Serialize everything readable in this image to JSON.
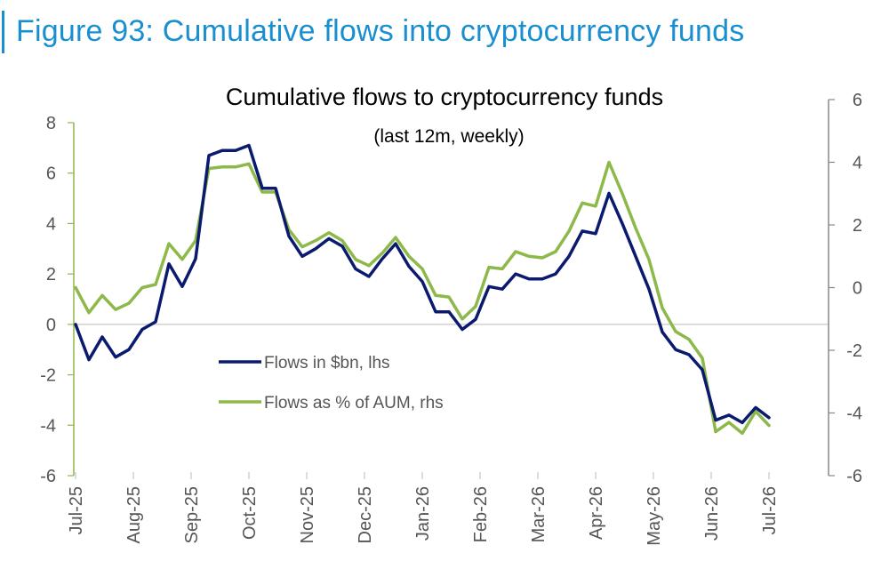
{
  "figure": {
    "heading": "Figure 93: Cumulative flows into cryptocurrency funds",
    "accent_color": "#1a8fd0"
  },
  "chart_data": {
    "type": "line",
    "title": "Cumulative flows to cryptocurrency funds",
    "subtitle": "(last 12m, weekly)",
    "x_tick_labels": [
      "Jul-25",
      "Aug-25",
      "Sep-25",
      "Oct-25",
      "Nov-25",
      "Dec-25",
      "Jan-26",
      "Feb-26",
      "Mar-26",
      "Apr-26",
      "May-26",
      "Jun-26",
      "Jul-26"
    ],
    "y_left": {
      "lim": [
        -6,
        8
      ],
      "ticks": [
        -6,
        -4,
        -2,
        0,
        2,
        4,
        6,
        8
      ]
    },
    "y_right": {
      "lim": [
        -6,
        6
      ],
      "ticks": [
        -6,
        -4,
        -2,
        0,
        2,
        4,
        6
      ]
    },
    "grid": "horizontal-at-zero",
    "legend_position": "center-left",
    "series": [
      {
        "name": "Flows in $bn, lhs",
        "axis": "left",
        "color": "#0a1a6e",
        "values": [
          0.0,
          -1.4,
          -0.5,
          -1.3,
          -1.0,
          -0.2,
          0.1,
          2.4,
          1.5,
          2.6,
          6.7,
          6.9,
          6.9,
          7.1,
          5.4,
          5.4,
          3.5,
          2.7,
          3.0,
          3.4,
          3.1,
          2.2,
          1.9,
          2.6,
          3.2,
          2.3,
          1.7,
          0.5,
          0.5,
          -0.2,
          0.2,
          1.5,
          1.4,
          2.0,
          1.8,
          1.8,
          2.0,
          2.7,
          3.7,
          3.6,
          5.2,
          4.0,
          2.7,
          1.4,
          -0.3,
          -1.0,
          -1.2,
          -1.8,
          -3.8,
          -3.6,
          -3.9,
          -3.3,
          -3.7
        ]
      },
      {
        "name": "Flows as % of AUM, rhs",
        "axis": "right",
        "color": "#8db84a",
        "values": [
          0.0,
          -0.8,
          -0.25,
          -0.7,
          -0.5,
          -0.0,
          0.1,
          1.4,
          0.9,
          1.5,
          3.8,
          3.85,
          3.85,
          3.95,
          3.05,
          3.05,
          1.85,
          1.3,
          1.5,
          1.75,
          1.5,
          0.9,
          0.7,
          1.1,
          1.6,
          1.0,
          0.6,
          -0.25,
          -0.3,
          -1.0,
          -0.6,
          0.65,
          0.6,
          1.15,
          1.0,
          0.95,
          1.15,
          1.8,
          2.7,
          2.6,
          4.0,
          3.0,
          1.9,
          0.9,
          -0.65,
          -1.4,
          -1.65,
          -2.25,
          -4.6,
          -4.3,
          -4.65,
          -3.95,
          -4.4
        ]
      }
    ]
  }
}
